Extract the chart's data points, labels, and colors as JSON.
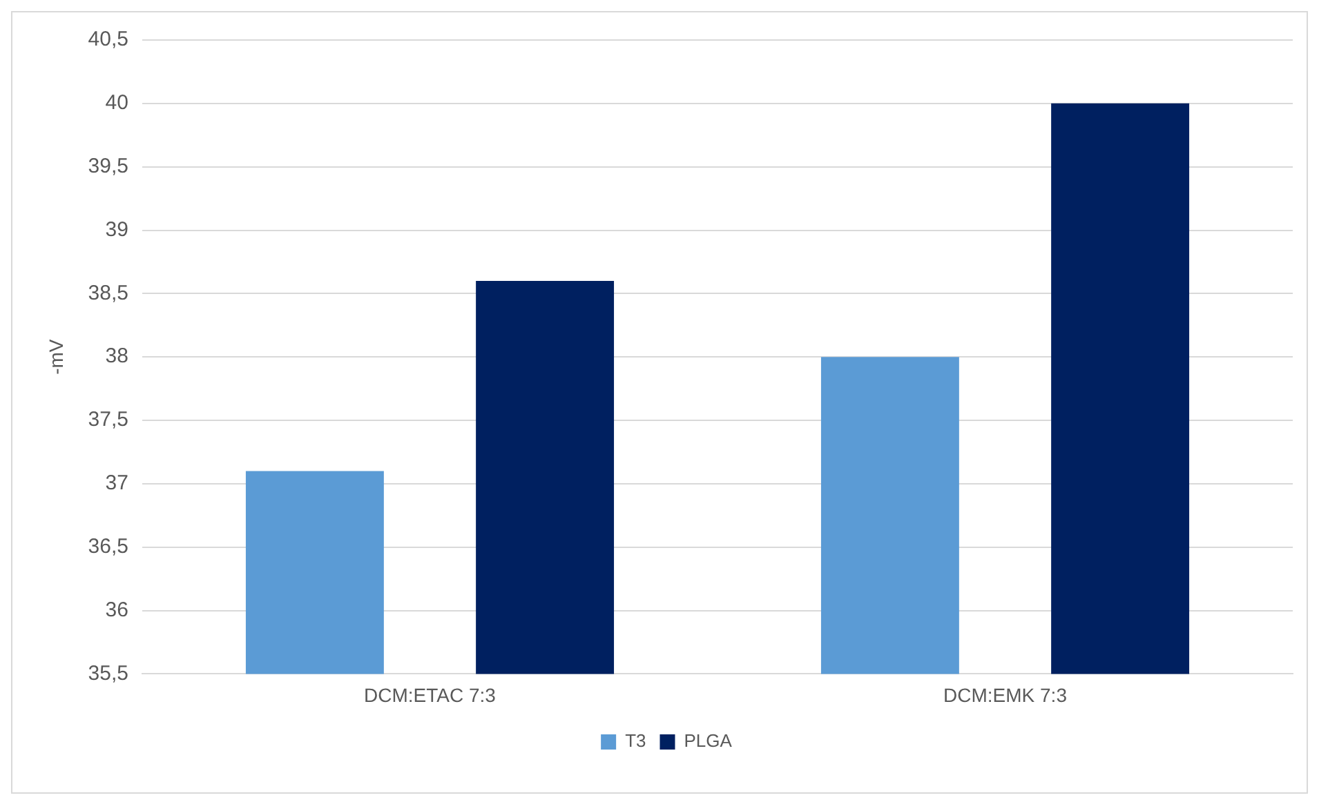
{
  "chart_data": {
    "type": "bar",
    "ylabel": "-mV",
    "categories": [
      "DCM:ETAC 7:3",
      "DCM:EMK 7:3"
    ],
    "series": [
      {
        "name": "T3",
        "color": "#5b9bd5",
        "values": [
          37.1,
          38
        ]
      },
      {
        "name": "PLGA",
        "color": "#002060",
        "values": [
          38.6,
          40
        ]
      }
    ],
    "ylim": [
      35.5,
      40.5
    ],
    "yticks": [
      {
        "value": 35.5,
        "label": "35,5"
      },
      {
        "value": 36,
        "label": "36"
      },
      {
        "value": 36.5,
        "label": "36,5"
      },
      {
        "value": 37,
        "label": "37"
      },
      {
        "value": 37.5,
        "label": "37,5"
      },
      {
        "value": 38,
        "label": "38"
      },
      {
        "value": 38.5,
        "label": "38,5"
      },
      {
        "value": 39,
        "label": "39"
      },
      {
        "value": 39.5,
        "label": "39,5"
      },
      {
        "value": 40,
        "label": "40"
      },
      {
        "value": 40.5,
        "label": "40,5"
      }
    ],
    "grid": "y",
    "legend": "bottom"
  }
}
